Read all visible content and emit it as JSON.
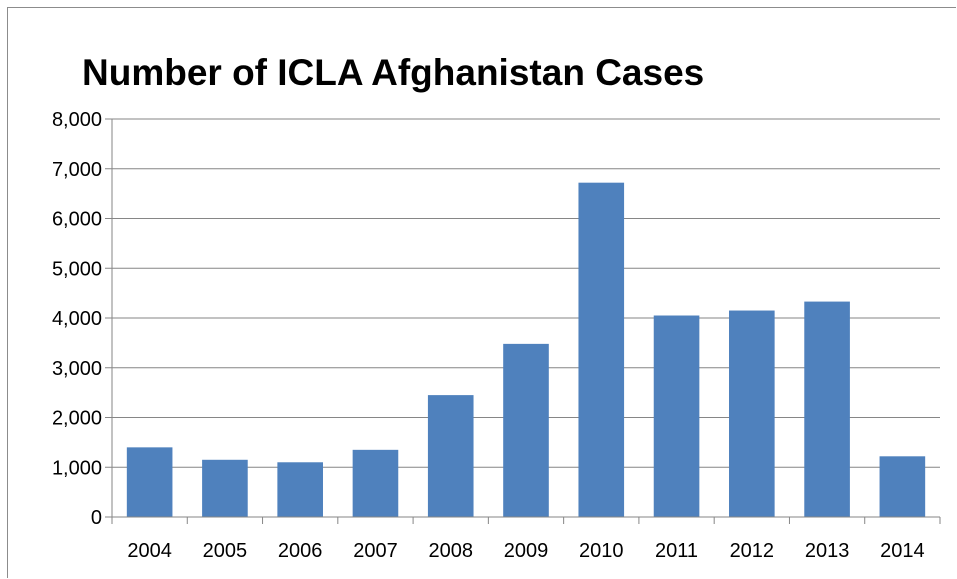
{
  "chart_data": {
    "type": "bar",
    "title": "Number of ICLA Afghanistan Cases",
    "xlabel": "",
    "ylabel": "",
    "categories": [
      "2004",
      "2005",
      "2006",
      "2007",
      "2008",
      "2009",
      "2010",
      "2011",
      "2012",
      "2013",
      "2014"
    ],
    "values": [
      1400,
      1150,
      1100,
      1350,
      2450,
      3480,
      6720,
      4050,
      4150,
      4330,
      1220
    ],
    "ylim": [
      0,
      8000
    ],
    "yticks": [
      "0",
      "1,000",
      "2,000",
      "3,000",
      "4,000",
      "5,000",
      "6,000",
      "7,000",
      "8,000"
    ],
    "grid": true,
    "legend": "none",
    "colors": {
      "bar": "#4f81bd",
      "grid": "#868686",
      "axis": "#868686"
    }
  }
}
